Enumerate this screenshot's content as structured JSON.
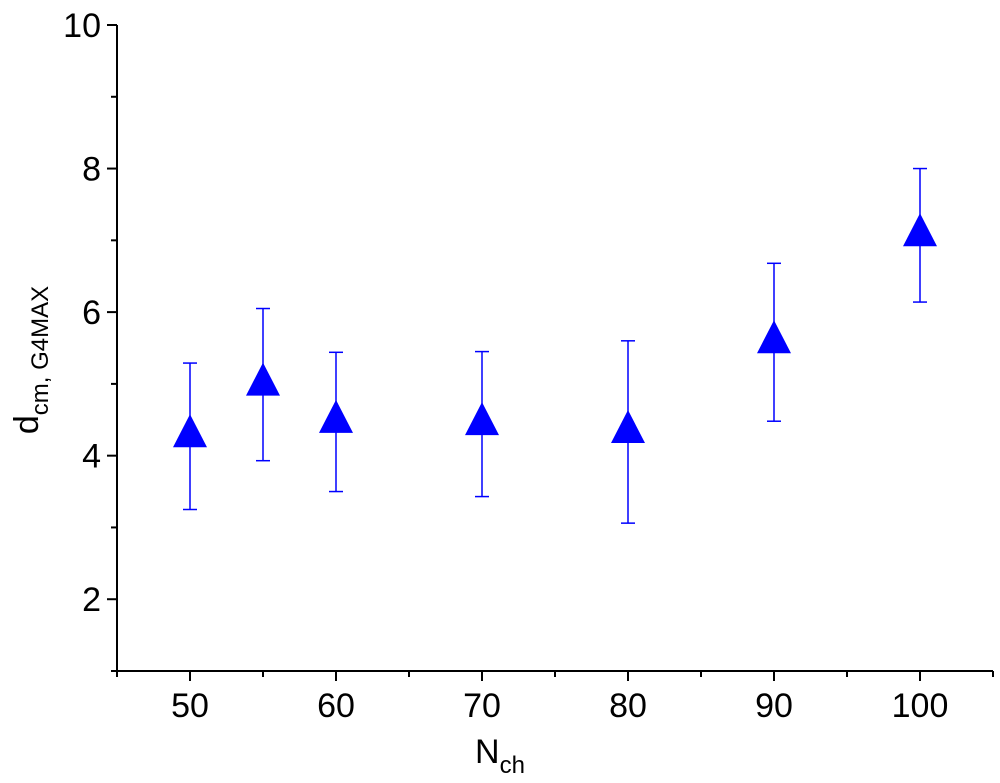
{
  "chart_data": {
    "type": "scatter",
    "xlabel": "N",
    "xlabel_sub": "ch",
    "ylabel": "d",
    "ylabel_sub": "cm, G4MAX",
    "x": [
      50,
      55,
      60,
      70,
      80,
      90,
      100
    ],
    "series": [
      {
        "color": "#0000ff",
        "values": [
          4.27,
          4.99,
          4.47,
          4.44,
          4.33,
          5.58,
          7.07
        ],
        "errors": [
          1.02,
          1.06,
          0.97,
          1.01,
          1.27,
          1.1,
          0.93
        ]
      }
    ],
    "xlim": [
      45,
      105
    ],
    "xticks": [
      50,
      60,
      70,
      80,
      90,
      100
    ],
    "xminorticks": [
      45,
      55,
      65,
      75,
      85,
      95,
      105
    ],
    "ylim": [
      1,
      10
    ],
    "yticks": [
      2,
      4,
      6,
      8,
      10
    ],
    "yminorticks": [
      1,
      3,
      5,
      7,
      9
    ]
  }
}
